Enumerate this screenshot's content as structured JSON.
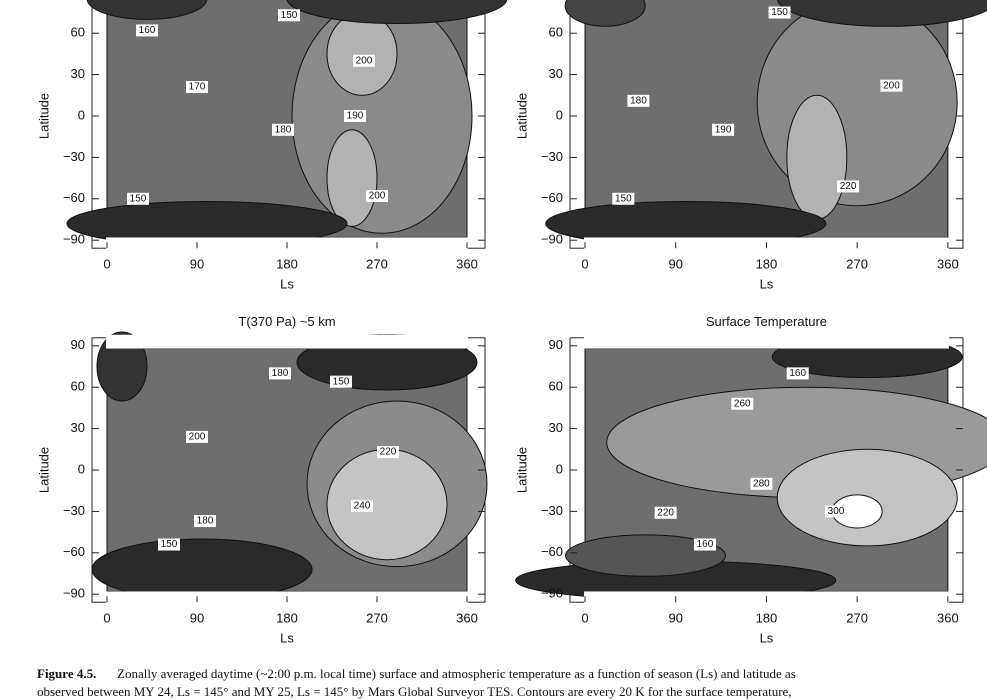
{
  "figure": {
    "panels": [
      {
        "xticks": [
          "0",
          "90",
          "180",
          "270",
          "360"
        ],
        "yticks": [
          "60",
          "30",
          "0",
          "−30",
          "−60",
          "−90"
        ],
        "xlabel": "Ls",
        "ylabel": "Latitude",
        "contour_labels": [
          "160",
          "150",
          "200",
          "170",
          "190",
          "180",
          "200",
          "150"
        ]
      },
      {
        "xticks": [
          "0",
          "90",
          "180",
          "270",
          "360"
        ],
        "yticks": [
          "60",
          "30",
          "0",
          "−30",
          "−60",
          "−90"
        ],
        "xlabel": "Ls",
        "ylabel": "Latitude",
        "contour_labels": [
          "150",
          "180",
          "200",
          "190",
          "220",
          "150"
        ]
      },
      {
        "title": "T(370 Pa) ~5 km",
        "xticks": [
          "0",
          "90",
          "180",
          "270",
          "360"
        ],
        "yticks": [
          "90",
          "60",
          "30",
          "0",
          "−30",
          "−60",
          "−90"
        ],
        "xlabel": "Ls",
        "ylabel": "Latitude",
        "contour_labels": [
          "180",
          "150",
          "200",
          "220",
          "240",
          "180",
          "150"
        ]
      },
      {
        "title": "Surface Temperature",
        "xticks": [
          "0",
          "90",
          "180",
          "270",
          "360"
        ],
        "yticks": [
          "90",
          "60",
          "30",
          "0",
          "−30",
          "−60",
          "−90"
        ],
        "xlabel": "Ls",
        "ylabel": "Latitude",
        "contour_labels": [
          "160",
          "260",
          "280",
          "300",
          "220",
          "160"
        ]
      }
    ],
    "caption": {
      "label": "Figure 4.5.",
      "lines": [
        "Zonally averaged daytime (~2:00 p.m. local time) surface and atmospheric temperature as a function of season (Ls) and latitude as",
        "observed between MY 24, Ls = 145° and MY 25, Ls = 145° by Mars Global Surveyor TES. Contours are every 20 K for the surface temperature,"
      ]
    }
  }
}
